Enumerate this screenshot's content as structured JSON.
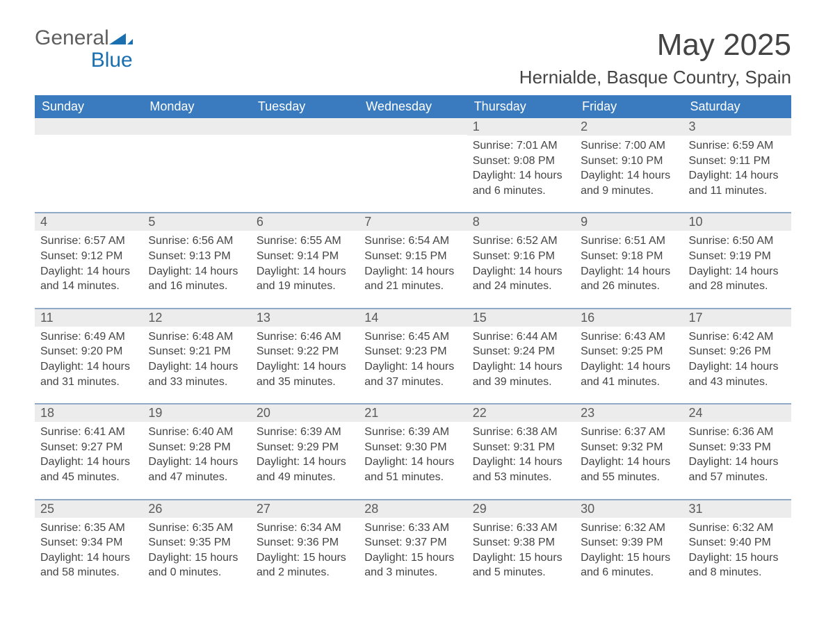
{
  "logo": {
    "general": "General",
    "blue": "Blue"
  },
  "title": "May 2025",
  "location": "Hernialde, Basque Country, Spain",
  "colors": {
    "header_blue": "#3a7bbf",
    "accent_blue": "#1a6fb0",
    "date_row_bg": "#ececec",
    "text_gray": "#444444"
  },
  "weekday_headers": [
    "Sunday",
    "Monday",
    "Tuesday",
    "Wednesday",
    "Thursday",
    "Friday",
    "Saturday"
  ],
  "weeks": [
    [
      null,
      null,
      null,
      null,
      {
        "day": "1",
        "sunrise": "Sunrise: 7:01 AM",
        "sunset": "Sunset: 9:08 PM",
        "daylight": "Daylight: 14 hours and 6 minutes."
      },
      {
        "day": "2",
        "sunrise": "Sunrise: 7:00 AM",
        "sunset": "Sunset: 9:10 PM",
        "daylight": "Daylight: 14 hours and 9 minutes."
      },
      {
        "day": "3",
        "sunrise": "Sunrise: 6:59 AM",
        "sunset": "Sunset: 9:11 PM",
        "daylight": "Daylight: 14 hours and 11 minutes."
      }
    ],
    [
      {
        "day": "4",
        "sunrise": "Sunrise: 6:57 AM",
        "sunset": "Sunset: 9:12 PM",
        "daylight": "Daylight: 14 hours and 14 minutes."
      },
      {
        "day": "5",
        "sunrise": "Sunrise: 6:56 AM",
        "sunset": "Sunset: 9:13 PM",
        "daylight": "Daylight: 14 hours and 16 minutes."
      },
      {
        "day": "6",
        "sunrise": "Sunrise: 6:55 AM",
        "sunset": "Sunset: 9:14 PM",
        "daylight": "Daylight: 14 hours and 19 minutes."
      },
      {
        "day": "7",
        "sunrise": "Sunrise: 6:54 AM",
        "sunset": "Sunset: 9:15 PM",
        "daylight": "Daylight: 14 hours and 21 minutes."
      },
      {
        "day": "8",
        "sunrise": "Sunrise: 6:52 AM",
        "sunset": "Sunset: 9:16 PM",
        "daylight": "Daylight: 14 hours and 24 minutes."
      },
      {
        "day": "9",
        "sunrise": "Sunrise: 6:51 AM",
        "sunset": "Sunset: 9:18 PM",
        "daylight": "Daylight: 14 hours and 26 minutes."
      },
      {
        "day": "10",
        "sunrise": "Sunrise: 6:50 AM",
        "sunset": "Sunset: 9:19 PM",
        "daylight": "Daylight: 14 hours and 28 minutes."
      }
    ],
    [
      {
        "day": "11",
        "sunrise": "Sunrise: 6:49 AM",
        "sunset": "Sunset: 9:20 PM",
        "daylight": "Daylight: 14 hours and 31 minutes."
      },
      {
        "day": "12",
        "sunrise": "Sunrise: 6:48 AM",
        "sunset": "Sunset: 9:21 PM",
        "daylight": "Daylight: 14 hours and 33 minutes."
      },
      {
        "day": "13",
        "sunrise": "Sunrise: 6:46 AM",
        "sunset": "Sunset: 9:22 PM",
        "daylight": "Daylight: 14 hours and 35 minutes."
      },
      {
        "day": "14",
        "sunrise": "Sunrise: 6:45 AM",
        "sunset": "Sunset: 9:23 PM",
        "daylight": "Daylight: 14 hours and 37 minutes."
      },
      {
        "day": "15",
        "sunrise": "Sunrise: 6:44 AM",
        "sunset": "Sunset: 9:24 PM",
        "daylight": "Daylight: 14 hours and 39 minutes."
      },
      {
        "day": "16",
        "sunrise": "Sunrise: 6:43 AM",
        "sunset": "Sunset: 9:25 PM",
        "daylight": "Daylight: 14 hours and 41 minutes."
      },
      {
        "day": "17",
        "sunrise": "Sunrise: 6:42 AM",
        "sunset": "Sunset: 9:26 PM",
        "daylight": "Daylight: 14 hours and 43 minutes."
      }
    ],
    [
      {
        "day": "18",
        "sunrise": "Sunrise: 6:41 AM",
        "sunset": "Sunset: 9:27 PM",
        "daylight": "Daylight: 14 hours and 45 minutes."
      },
      {
        "day": "19",
        "sunrise": "Sunrise: 6:40 AM",
        "sunset": "Sunset: 9:28 PM",
        "daylight": "Daylight: 14 hours and 47 minutes."
      },
      {
        "day": "20",
        "sunrise": "Sunrise: 6:39 AM",
        "sunset": "Sunset: 9:29 PM",
        "daylight": "Daylight: 14 hours and 49 minutes."
      },
      {
        "day": "21",
        "sunrise": "Sunrise: 6:39 AM",
        "sunset": "Sunset: 9:30 PM",
        "daylight": "Daylight: 14 hours and 51 minutes."
      },
      {
        "day": "22",
        "sunrise": "Sunrise: 6:38 AM",
        "sunset": "Sunset: 9:31 PM",
        "daylight": "Daylight: 14 hours and 53 minutes."
      },
      {
        "day": "23",
        "sunrise": "Sunrise: 6:37 AM",
        "sunset": "Sunset: 9:32 PM",
        "daylight": "Daylight: 14 hours and 55 minutes."
      },
      {
        "day": "24",
        "sunrise": "Sunrise: 6:36 AM",
        "sunset": "Sunset: 9:33 PM",
        "daylight": "Daylight: 14 hours and 57 minutes."
      }
    ],
    [
      {
        "day": "25",
        "sunrise": "Sunrise: 6:35 AM",
        "sunset": "Sunset: 9:34 PM",
        "daylight": "Daylight: 14 hours and 58 minutes."
      },
      {
        "day": "26",
        "sunrise": "Sunrise: 6:35 AM",
        "sunset": "Sunset: 9:35 PM",
        "daylight": "Daylight: 15 hours and 0 minutes."
      },
      {
        "day": "27",
        "sunrise": "Sunrise: 6:34 AM",
        "sunset": "Sunset: 9:36 PM",
        "daylight": "Daylight: 15 hours and 2 minutes."
      },
      {
        "day": "28",
        "sunrise": "Sunrise: 6:33 AM",
        "sunset": "Sunset: 9:37 PM",
        "daylight": "Daylight: 15 hours and 3 minutes."
      },
      {
        "day": "29",
        "sunrise": "Sunrise: 6:33 AM",
        "sunset": "Sunset: 9:38 PM",
        "daylight": "Daylight: 15 hours and 5 minutes."
      },
      {
        "day": "30",
        "sunrise": "Sunrise: 6:32 AM",
        "sunset": "Sunset: 9:39 PM",
        "daylight": "Daylight: 15 hours and 6 minutes."
      },
      {
        "day": "31",
        "sunrise": "Sunrise: 6:32 AM",
        "sunset": "Sunset: 9:40 PM",
        "daylight": "Daylight: 15 hours and 8 minutes."
      }
    ]
  ]
}
